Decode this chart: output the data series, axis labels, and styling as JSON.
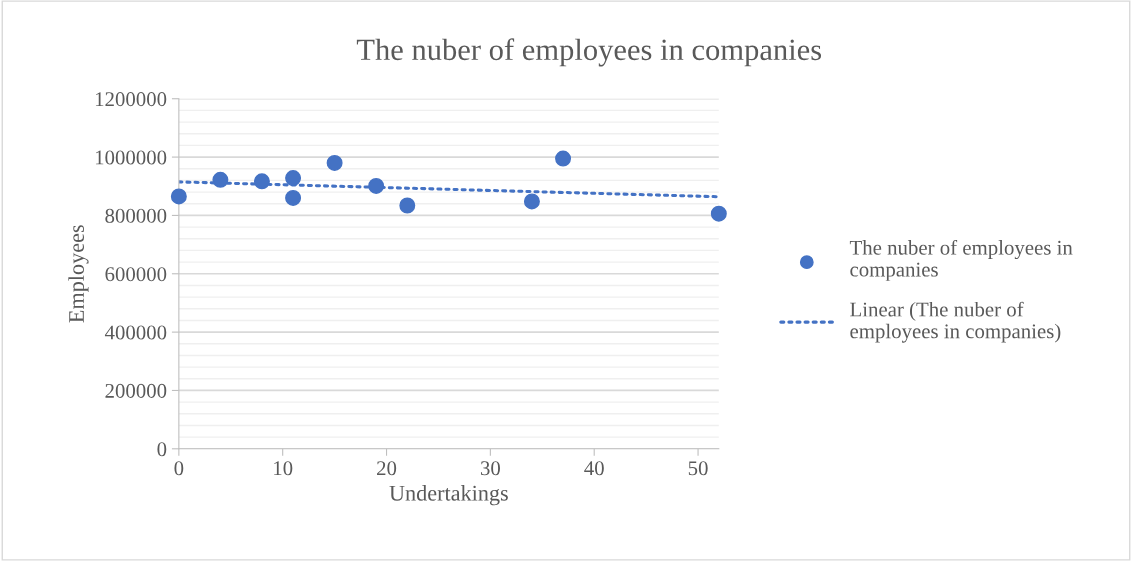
{
  "chart_data": {
    "type": "scatter",
    "title": "The nuber of employees in companies",
    "xlabel": "Undertakings",
    "ylabel": "Employees",
    "series": [
      {
        "name": "The nuber of employees in companies",
        "color": "#4472c4",
        "marker": "circle",
        "x": [
          0,
          4,
          8,
          11,
          11,
          15,
          19,
          22,
          34,
          37,
          52
        ],
        "values": [
          865000,
          922000,
          917000,
          928000,
          860000,
          980000,
          901000,
          834000,
          848000,
          995000,
          806000
        ]
      },
      {
        "name": "Linear (The nuber of employees in companies)",
        "type": "line",
        "color": "#4472c4",
        "line_style": "dotted",
        "x": [
          0,
          52
        ],
        "values": [
          915000,
          864000
        ]
      }
    ],
    "xlim": [
      0,
      52
    ],
    "xticks": [
      0,
      10,
      20,
      30,
      40,
      50
    ],
    "ylim": [
      0,
      1200000
    ],
    "yticks": [
      0,
      200000,
      400000,
      600000,
      800000,
      1000000,
      1200000
    ],
    "grid": "y",
    "legend": "right"
  }
}
